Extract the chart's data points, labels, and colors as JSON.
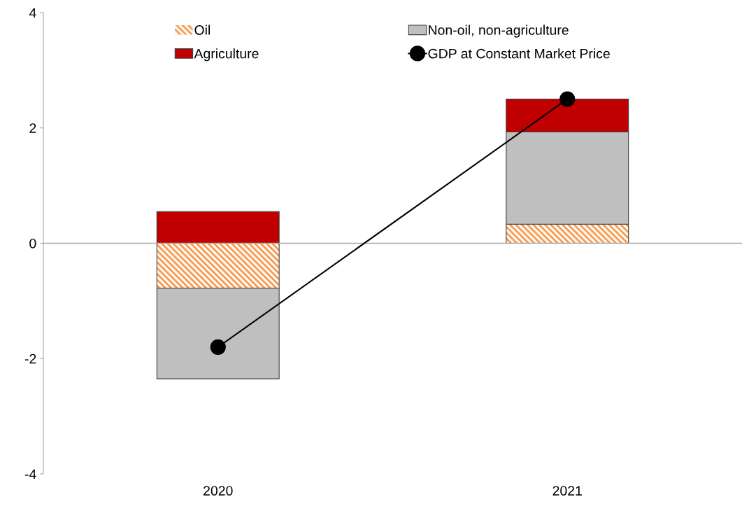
{
  "chart_data": {
    "type": "bar",
    "stacked": true,
    "categories": [
      "2020",
      "2021"
    ],
    "series": [
      {
        "name": "Oil",
        "color": "#f79646",
        "values": [
          -0.78,
          0.33
        ]
      },
      {
        "name": "Non-oil, non-agriculture",
        "color": "#bfbfbf",
        "values": [
          -1.57,
          1.6
        ]
      },
      {
        "name": "Agriculture",
        "color": "#c00000",
        "values": [
          0.55,
          0.57
        ]
      },
      {
        "name": "GDP at Constant Market Price",
        "type": "line",
        "color": "#000000",
        "marker": "circle",
        "values": [
          -1.8,
          2.5
        ]
      }
    ],
    "ylim": [
      -4,
      4
    ],
    "yticks": [
      {
        "value": -4,
        "label": "-4"
      },
      {
        "value": -2,
        "label": "-2"
      },
      0,
      2,
      4
    ],
    "ref_lines": [
      {
        "axis": "y",
        "value": 0,
        "color": "#a6a6a6"
      }
    ],
    "grid": false,
    "legend": "top"
  }
}
